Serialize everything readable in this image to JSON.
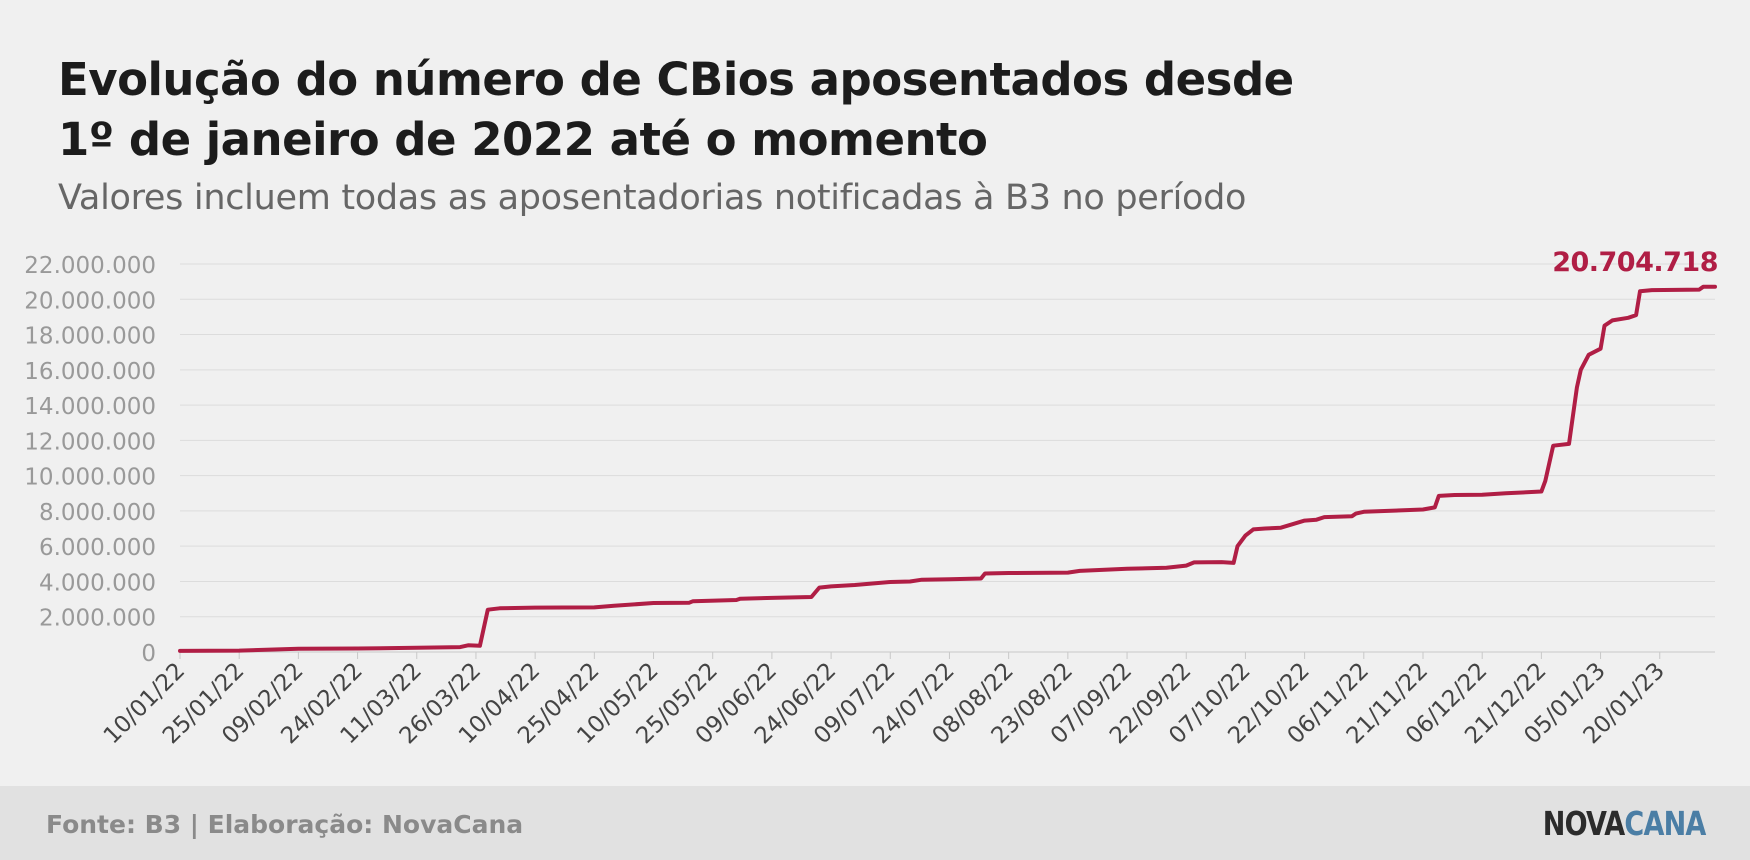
{
  "header": {
    "title_line1": "Evolução do número de CBios aposentados desde",
    "title_line2": "1º de janeiro de 2022 até o momento",
    "subtitle": "Valores incluem todas as aposentadorias notificadas à B3 no período"
  },
  "footer": {
    "source": "Fonte: B3 | Elaboração: NovaCana",
    "logo_part1": "NOVA",
    "logo_part2": "CANA"
  },
  "colors": {
    "series": "#b01e45",
    "grid": "#dcdcdc",
    "tick_label": "#999999",
    "x_tick_label": "#444444",
    "logo_cana": "#4b7ea5"
  },
  "chart_data": {
    "type": "line",
    "title": "Evolução do número de CBios aposentados desde 1º de janeiro de 2022 até o momento",
    "subtitle": "Valores incluem todas as aposentadorias notificadas à B3 no período",
    "xlabel": "",
    "ylabel": "",
    "grid": true,
    "ylim": [
      0,
      22000000
    ],
    "y_ticks": [
      0,
      2000000,
      4000000,
      6000000,
      8000000,
      10000000,
      12000000,
      14000000,
      16000000,
      18000000,
      20000000,
      22000000
    ],
    "y_tick_labels": [
      "0",
      "2.000.000",
      "4.000.000",
      "6.000.000",
      "8.000.000",
      "10.000.000",
      "12.000.000",
      "14.000.000",
      "16.000.000",
      "18.000.000",
      "20.000.000",
      "22.000.000"
    ],
    "x_range": [
      "2022-01-10",
      "2023-02-03"
    ],
    "x_tick_labels": [
      "10/01/22",
      "25/01/22",
      "09/02/22",
      "24/02/22",
      "11/03/22",
      "26/03/22",
      "10/04/22",
      "25/04/22",
      "10/05/22",
      "25/05/22",
      "09/06/22",
      "24/06/22",
      "09/07/22",
      "24/07/22",
      "08/08/22",
      "23/08/22",
      "07/09/22",
      "22/09/22",
      "07/10/22",
      "22/10/22",
      "06/11/22",
      "21/11/22",
      "06/12/22",
      "21/12/22",
      "05/01/23",
      "20/01/23"
    ],
    "annotation": {
      "text": "20.704.718",
      "x": "2023-02-03",
      "y": 20704718
    },
    "series": [
      {
        "points": [
          [
            "2022-01-10",
            60000
          ],
          [
            "2022-01-25",
            80000
          ],
          [
            "2022-02-09",
            180000
          ],
          [
            "2022-02-24",
            200000
          ],
          [
            "2022-03-11",
            240000
          ],
          [
            "2022-03-22",
            280000
          ],
          [
            "2022-03-24",
            380000
          ],
          [
            "2022-03-27",
            350000
          ],
          [
            "2022-03-29",
            2400000
          ],
          [
            "2022-04-01",
            2480000
          ],
          [
            "2022-04-10",
            2520000
          ],
          [
            "2022-04-25",
            2530000
          ],
          [
            "2022-04-30",
            2620000
          ],
          [
            "2022-05-10",
            2780000
          ],
          [
            "2022-05-19",
            2790000
          ],
          [
            "2022-05-20",
            2880000
          ],
          [
            "2022-05-31",
            2950000
          ],
          [
            "2022-06-01",
            3020000
          ],
          [
            "2022-06-09",
            3070000
          ],
          [
            "2022-06-19",
            3120000
          ],
          [
            "2022-06-21",
            3650000
          ],
          [
            "2022-06-24",
            3720000
          ],
          [
            "2022-06-30",
            3800000
          ],
          [
            "2022-07-09",
            3970000
          ],
          [
            "2022-07-14",
            4000000
          ],
          [
            "2022-07-17",
            4100000
          ],
          [
            "2022-07-24",
            4130000
          ],
          [
            "2022-08-01",
            4170000
          ],
          [
            "2022-08-02",
            4450000
          ],
          [
            "2022-08-08",
            4480000
          ],
          [
            "2022-08-23",
            4500000
          ],
          [
            "2022-08-26",
            4600000
          ],
          [
            "2022-09-07",
            4720000
          ],
          [
            "2022-09-17",
            4780000
          ],
          [
            "2022-09-22",
            4900000
          ],
          [
            "2022-09-24",
            5080000
          ],
          [
            "2022-10-01",
            5100000
          ],
          [
            "2022-10-04",
            5050000
          ],
          [
            "2022-10-05",
            6000000
          ],
          [
            "2022-10-07",
            6600000
          ],
          [
            "2022-10-09",
            6950000
          ],
          [
            "2022-10-12",
            7000000
          ],
          [
            "2022-10-16",
            7050000
          ],
          [
            "2022-10-22",
            7450000
          ],
          [
            "2022-10-25",
            7500000
          ],
          [
            "2022-10-27",
            7650000
          ],
          [
            "2022-11-03",
            7700000
          ],
          [
            "2022-11-04",
            7850000
          ],
          [
            "2022-11-06",
            7950000
          ],
          [
            "2022-11-21",
            8080000
          ],
          [
            "2022-11-24",
            8200000
          ],
          [
            "2022-11-25",
            8850000
          ],
          [
            "2022-11-29",
            8900000
          ],
          [
            "2022-12-06",
            8920000
          ],
          [
            "2022-12-12",
            9000000
          ],
          [
            "2022-12-21",
            9100000
          ],
          [
            "2022-12-22",
            9700000
          ],
          [
            "2022-12-24",
            11700000
          ],
          [
            "2022-12-28",
            11800000
          ],
          [
            "2022-12-30",
            15000000
          ],
          [
            "2022-12-31",
            16000000
          ],
          [
            "2023-01-02",
            16850000
          ],
          [
            "2023-01-05",
            17200000
          ],
          [
            "2023-01-06",
            18500000
          ],
          [
            "2023-01-08",
            18800000
          ],
          [
            "2023-01-12",
            18950000
          ],
          [
            "2023-01-14",
            19100000
          ],
          [
            "2023-01-15",
            20450000
          ],
          [
            "2023-01-18",
            20520000
          ],
          [
            "2023-01-30",
            20550000
          ],
          [
            "2023-01-31",
            20704718
          ],
          [
            "2023-02-03",
            20704718
          ]
        ]
      }
    ]
  }
}
